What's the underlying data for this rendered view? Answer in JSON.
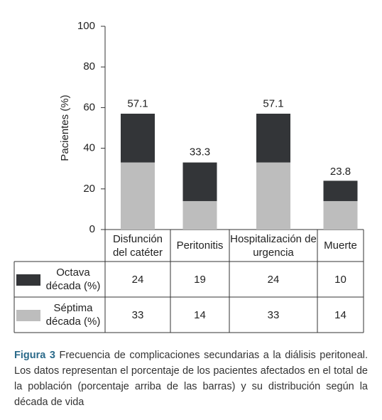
{
  "chart_data": {
    "type": "stacked_bar",
    "y_label": "Pacientes (%)",
    "categories": [
      "Disfunción del catéter",
      "Peritonitis",
      "Hospitalización de urgencia",
      "Muerte"
    ],
    "series": [
      {
        "name": "Octava década (%)",
        "color": "#333538",
        "values": [
          24,
          19,
          24,
          10
        ]
      },
      {
        "name": "Séptima década (%)",
        "color": "#bdbdbd",
        "values": [
          33,
          14,
          33,
          14
        ]
      }
    ],
    "totals": [
      57.1,
      33.3,
      57.1,
      23.8
    ],
    "ylim": [
      0,
      100
    ],
    "yticks": [
      0,
      20,
      40,
      60,
      80,
      100
    ]
  },
  "caption": {
    "label": "Figura 3",
    "text": "Frecuencia de complicaciones secundarias a la diálisis peritoneal. Los datos representan el porcentaje de los pacientes afectados en el total de la población (porcentaje arriba de las barras) y su distribución según la década de vida"
  }
}
